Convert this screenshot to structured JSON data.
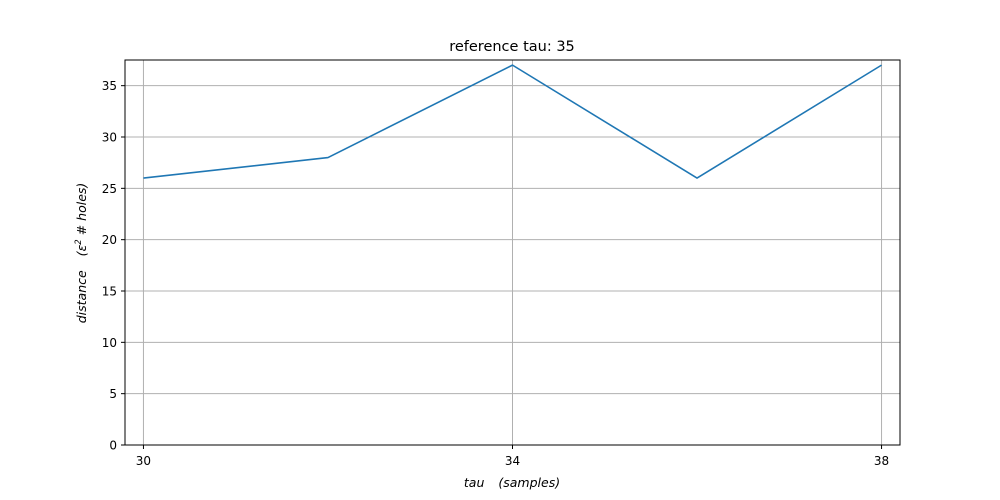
{
  "chart_data": {
    "type": "line",
    "title": "reference tau: 35",
    "xlabel_main": "tau",
    "xlabel_unit": "(samples)",
    "ylabel_main": "distance",
    "ylabel_unit_prefix": "(ε",
    "ylabel_unit_sup": "2",
    "ylabel_unit_suffix": " # holes)",
    "x": [
      30,
      32,
      34,
      36,
      38
    ],
    "series": [
      {
        "values": [
          26,
          28,
          37,
          26,
          37
        ],
        "color": "#1f77b4"
      }
    ],
    "xlim": [
      29.8,
      38.2
    ],
    "ylim": [
      0,
      37.5
    ],
    "xticks": [
      30,
      34,
      38
    ],
    "yticks": [
      0,
      5,
      10,
      15,
      20,
      25,
      30,
      35
    ],
    "xtick_labels": [
      "30",
      "34",
      "38"
    ],
    "ytick_labels": [
      "0",
      "5",
      "10",
      "15",
      "20",
      "25",
      "30",
      "35"
    ],
    "grid": true,
    "grid_color": "#b0b0b0"
  }
}
